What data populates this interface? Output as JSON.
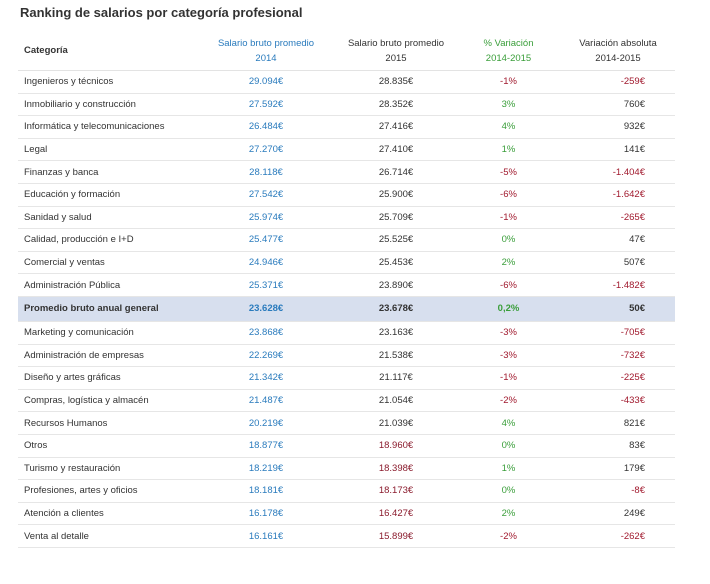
{
  "title": "Ranking de salarios por categoría profesional",
  "headers": {
    "category": "Categoría",
    "s2014_line1": "Salario bruto promedio",
    "s2014_line2": "2014",
    "s2015_line1": "Salario bruto promedio",
    "s2015_line2": "2015",
    "pct_line1": "% Variación",
    "pct_line2": "2014-2015",
    "abs_line1": "Variación absoluta",
    "abs_line2": "2014-2015"
  },
  "rows": [
    {
      "category": "Ingenieros y técnicos",
      "s2014": "29.094€",
      "s2015": "28.835€",
      "pct": "-1%",
      "abs": "-259€",
      "s2015_neg": false,
      "pct_neg": true,
      "abs_neg": true
    },
    {
      "category": "Inmobiliario y construcción",
      "s2014": "27.592€",
      "s2015": "28.352€",
      "pct": "3%",
      "abs": "760€",
      "s2015_neg": false,
      "pct_neg": false,
      "abs_neg": false
    },
    {
      "category": "Informática y telecomunicaciones",
      "s2014": "26.484€",
      "s2015": "27.416€",
      "pct": "4%",
      "abs": "932€",
      "s2015_neg": false,
      "pct_neg": false,
      "abs_neg": false
    },
    {
      "category": "Legal",
      "s2014": "27.270€",
      "s2015": "27.410€",
      "pct": "1%",
      "abs": "141€",
      "s2015_neg": false,
      "pct_neg": false,
      "abs_neg": false
    },
    {
      "category": "Finanzas y banca",
      "s2014": "28.118€",
      "s2015": "26.714€",
      "pct": "-5%",
      "abs": "-1.404€",
      "s2015_neg": false,
      "pct_neg": true,
      "abs_neg": true
    },
    {
      "category": "Educación y formación",
      "s2014": "27.542€",
      "s2015": "25.900€",
      "pct": "-6%",
      "abs": "-1.642€",
      "s2015_neg": false,
      "pct_neg": true,
      "abs_neg": true
    },
    {
      "category": "Sanidad y salud",
      "s2014": "25.974€",
      "s2015": "25.709€",
      "pct": "-1%",
      "abs": "-265€",
      "s2015_neg": false,
      "pct_neg": true,
      "abs_neg": true
    },
    {
      "category": "Calidad, producción e I+D",
      "s2014": "25.477€",
      "s2015": "25.525€",
      "pct": "0%",
      "abs": "47€",
      "s2015_neg": false,
      "pct_neg": false,
      "abs_neg": false
    },
    {
      "category": "Comercial y ventas",
      "s2014": "24.946€",
      "s2015": "25.453€",
      "pct": "2%",
      "abs": "507€",
      "s2015_neg": false,
      "pct_neg": false,
      "abs_neg": false
    },
    {
      "category": "Administración Pública",
      "s2014": "25.371€",
      "s2015": "23.890€",
      "pct": "-6%",
      "abs": "-1.482€",
      "s2015_neg": false,
      "pct_neg": true,
      "abs_neg": true
    },
    {
      "category": "Promedio bruto anual general",
      "s2014": "23.628€",
      "s2015": "23.678€",
      "pct": "0,2%",
      "abs": "50€",
      "s2015_neg": false,
      "pct_neg": false,
      "abs_neg": false,
      "highlight": true
    },
    {
      "category": "Marketing y comunicación",
      "s2014": "23.868€",
      "s2015": "23.163€",
      "pct": "-3%",
      "abs": "-705€",
      "s2015_neg": false,
      "pct_neg": true,
      "abs_neg": true
    },
    {
      "category": "Administración de empresas",
      "s2014": "22.269€",
      "s2015": "21.538€",
      "pct": "-3%",
      "abs": "-732€",
      "s2015_neg": false,
      "pct_neg": true,
      "abs_neg": true
    },
    {
      "category": "Diseño y artes gráficas",
      "s2014": "21.342€",
      "s2015": "21.117€",
      "pct": "-1%",
      "abs": "-225€",
      "s2015_neg": false,
      "pct_neg": true,
      "abs_neg": true
    },
    {
      "category": "Compras, logística y almacén",
      "s2014": "21.487€",
      "s2015": "21.054€",
      "pct": "-2%",
      "abs": "-433€",
      "s2015_neg": false,
      "pct_neg": true,
      "abs_neg": true
    },
    {
      "category": "Recursos Humanos",
      "s2014": "20.219€",
      "s2015": "21.039€",
      "pct": "4%",
      "abs": "821€",
      "s2015_neg": false,
      "pct_neg": false,
      "abs_neg": false
    },
    {
      "category": "Otros",
      "s2014": "18.877€",
      "s2015": "18.960€",
      "pct": "0%",
      "abs": "83€",
      "s2015_neg": true,
      "pct_neg": false,
      "abs_neg": false
    },
    {
      "category": "Turismo y restauración",
      "s2014": "18.219€",
      "s2015": "18.398€",
      "pct": "1%",
      "abs": "179€",
      "s2015_neg": true,
      "pct_neg": false,
      "abs_neg": false
    },
    {
      "category": "Profesiones, artes y oficios",
      "s2014": "18.181€",
      "s2015": "18.173€",
      "pct": "0%",
      "abs": "-8€",
      "s2015_neg": true,
      "pct_neg": false,
      "abs_neg": true
    },
    {
      "category": "Atención a clientes",
      "s2014": "16.178€",
      "s2015": "16.427€",
      "pct": "2%",
      "abs": "249€",
      "s2015_neg": true,
      "pct_neg": false,
      "abs_neg": false
    },
    {
      "category": "Venta al detalle",
      "s2014": "16.161€",
      "s2015": "15.899€",
      "pct": "-2%",
      "abs": "-262€",
      "s2015_neg": true,
      "pct_neg": true,
      "abs_neg": true
    }
  ],
  "colors": {
    "blue": "#2a7bbd",
    "green": "#3a9e3a",
    "red": "#a11a2e",
    "highlight_bg": "#d7dfee"
  }
}
